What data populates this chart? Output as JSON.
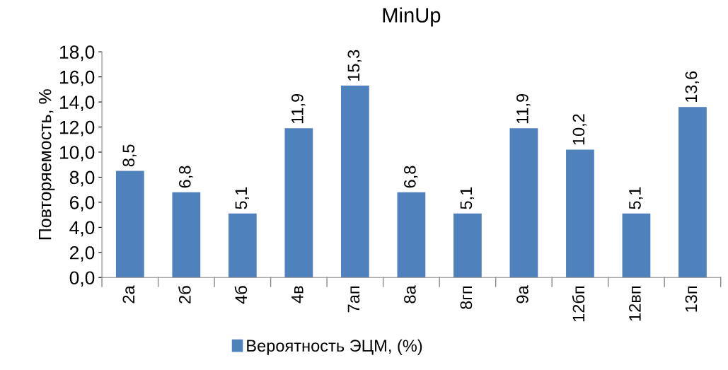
{
  "chart_data": {
    "type": "bar",
    "title": "MinUp",
    "ylabel": "Повторяемость, %",
    "categories": [
      "2а",
      "2б",
      "4б",
      "4в",
      "7ап",
      "8а",
      "8гп",
      "9а",
      "12бп",
      "12вп",
      "13п"
    ],
    "series": [
      {
        "name": "Вероятность ЭЦМ, (%)",
        "color": "#4f81bd",
        "values": [
          8.5,
          6.8,
          5.1,
          11.9,
          15.3,
          6.8,
          5.1,
          11.9,
          10.2,
          5.1,
          13.6
        ],
        "value_labels": [
          "8,5",
          "6,8",
          "5,1",
          "11,9",
          "15,3",
          "6,8",
          "5,1",
          "11,9",
          "10,2",
          "5,1",
          "13,6"
        ]
      }
    ],
    "ylim": [
      0,
      18
    ],
    "yticks": [
      {
        "value": 0,
        "label": "0,0"
      },
      {
        "value": 2,
        "label": "2,0"
      },
      {
        "value": 4,
        "label": "4,0"
      },
      {
        "value": 6,
        "label": "6,0"
      },
      {
        "value": 8,
        "label": "8,0"
      },
      {
        "value": 10,
        "label": "10,0"
      },
      {
        "value": 12,
        "label": "12,0"
      },
      {
        "value": 14,
        "label": "14,0"
      },
      {
        "value": 16,
        "label": "16,0"
      },
      {
        "value": 18,
        "label": "18,0"
      }
    ],
    "grid": false,
    "legend": "bottom"
  }
}
